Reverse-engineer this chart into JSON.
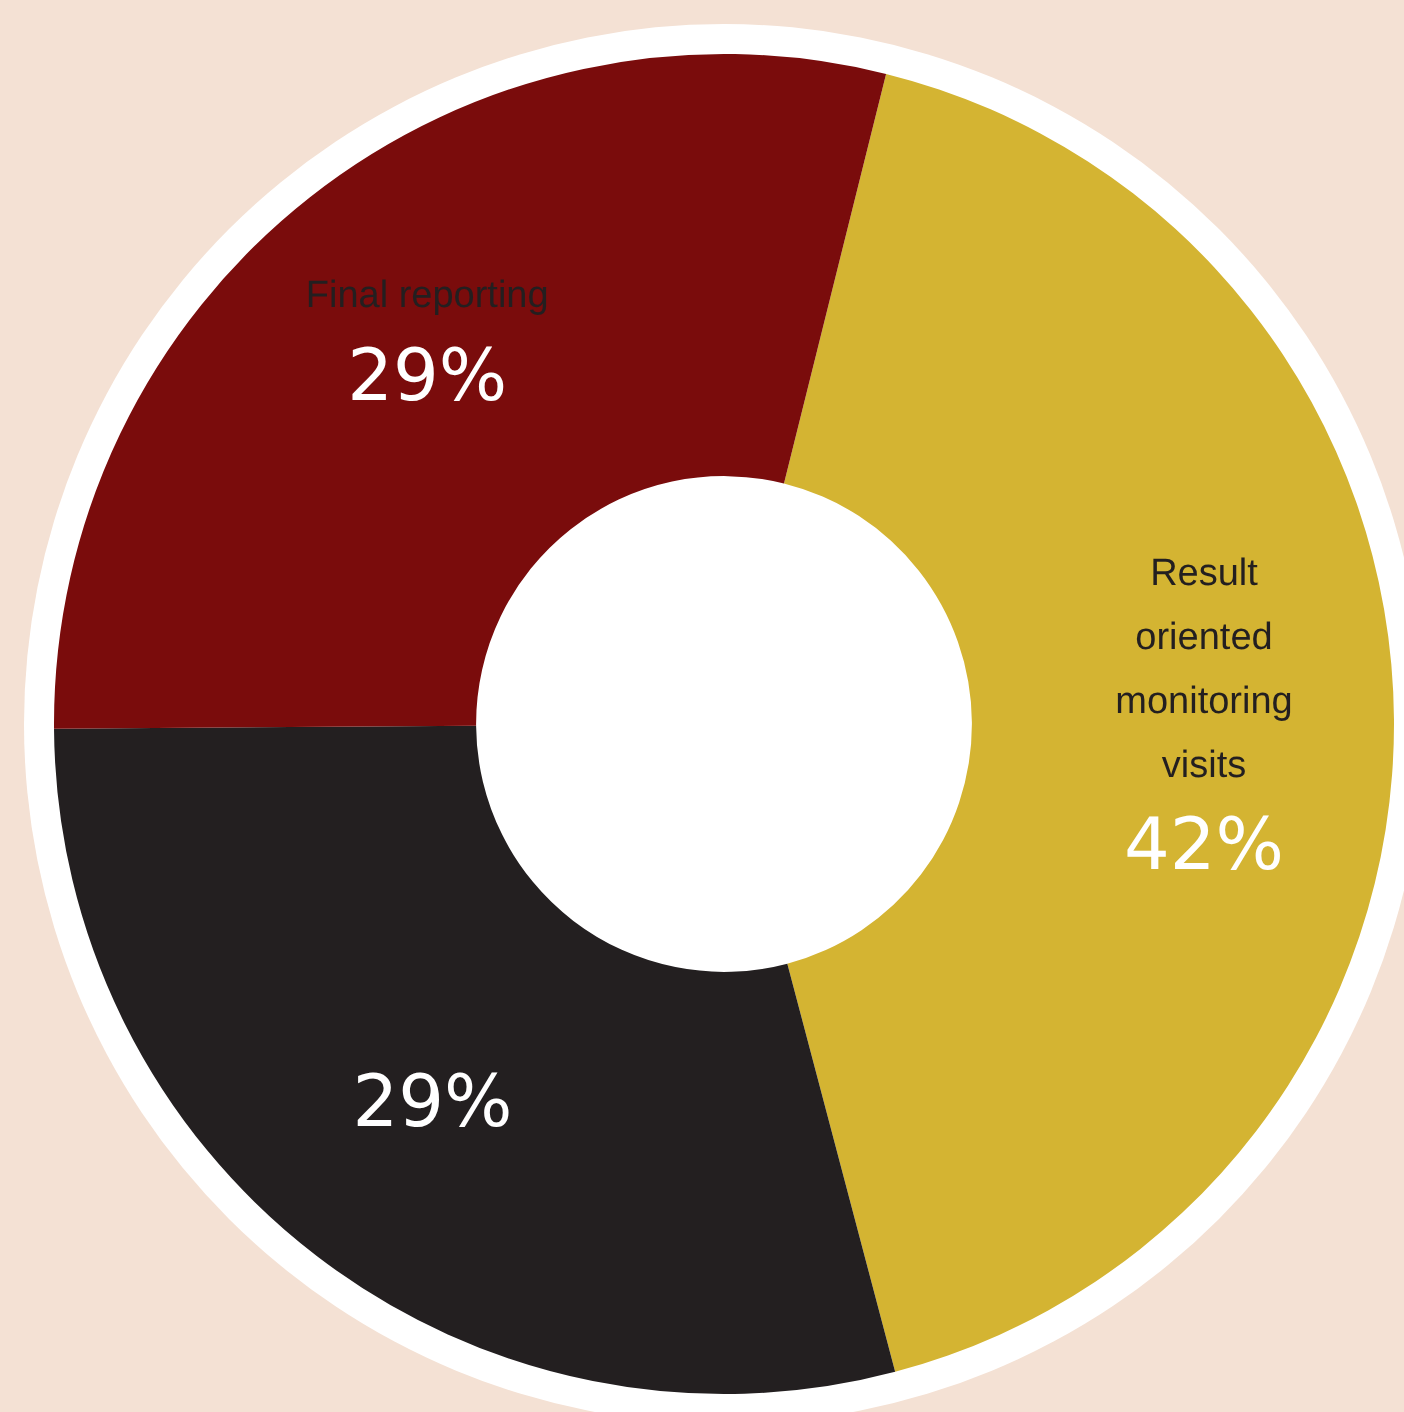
{
  "chart_data": {
    "type": "donut",
    "categories": [
      "Result oriented monitoring visits",
      null,
      "Final reporting"
    ],
    "values": [
      42,
      29,
      29
    ],
    "colors": [
      "#d4b432",
      "#231f20",
      "#7a0c0c"
    ],
    "value_labels": [
      "42%",
      "29%",
      "29%"
    ],
    "legend": false
  }
}
